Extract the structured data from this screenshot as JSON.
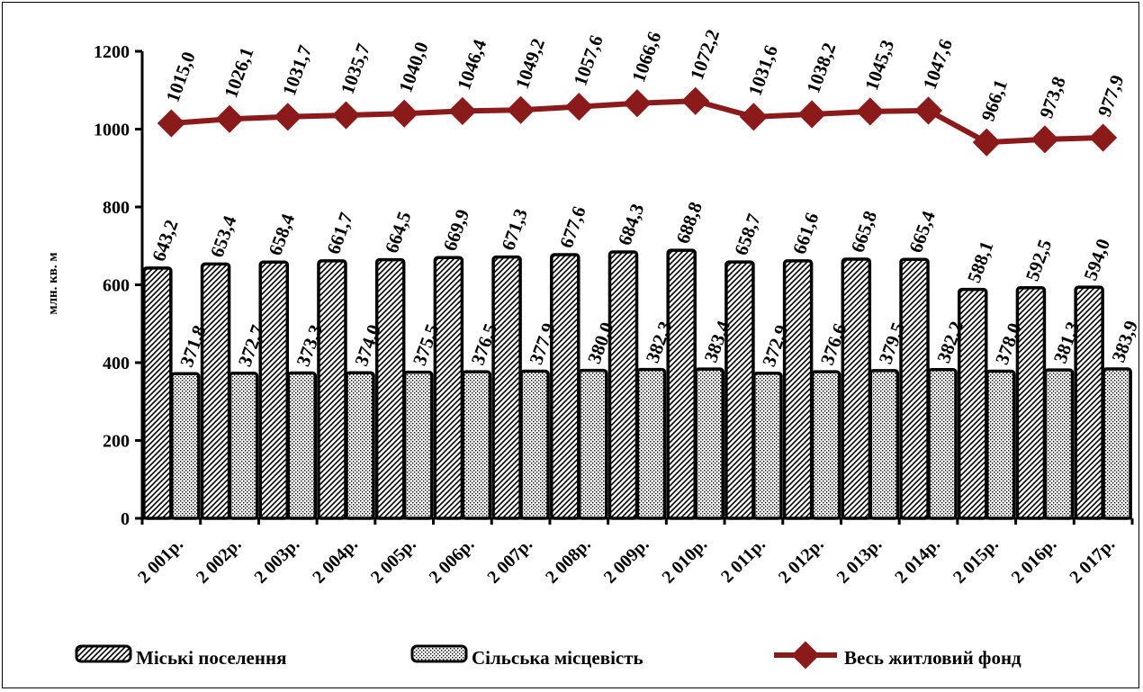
{
  "chart_data": {
    "type": "bar",
    "title": "",
    "xlabel": "",
    "ylabel": "млн. кв. м",
    "ylim": [
      0,
      1200
    ],
    "yticks": [
      0,
      200,
      400,
      600,
      800,
      1000,
      1200
    ],
    "grid": false,
    "legend_position": "bottom",
    "categories": [
      "2 001р.",
      "2 002р.",
      "2 003р.",
      "2 004р.",
      "2 005р.",
      "2 006р.",
      "2 007р.",
      "2 008р.",
      "2 009р.",
      "2 010р.",
      "2 011р.",
      "2 012р.",
      "2 013р.",
      "2 014р.",
      "2 015р.",
      "2 016р.",
      "2 017р."
    ],
    "series": [
      {
        "name": "Міські поселення",
        "type": "bar",
        "pattern": "diagonal-hatch",
        "values": [
          643.2,
          653.4,
          658.4,
          661.7,
          664.5,
          669.9,
          671.3,
          677.6,
          684.3,
          688.8,
          658.7,
          661.6,
          665.8,
          665.4,
          588.1,
          592.5,
          594.0
        ],
        "labels": [
          "643,2",
          "653,4",
          "658,4",
          "661,7",
          "664,5",
          "669,9",
          "671,3",
          "677,6",
          "684,3",
          "688,8",
          "658,7",
          "661,6",
          "665,8",
          "665,4",
          "588,1",
          "592,5",
          "594,0"
        ]
      },
      {
        "name": "Сільська місцевість",
        "type": "bar",
        "pattern": "dots",
        "values": [
          371.8,
          372.7,
          373.3,
          374.0,
          375.5,
          376.5,
          377.9,
          380.0,
          382.3,
          383.4,
          372.9,
          376.6,
          379.5,
          382.2,
          378.0,
          381.3,
          383.9
        ],
        "labels": [
          "371,8",
          "372,7",
          "373,3",
          "374,0",
          "375,5",
          "376,5",
          "377,9",
          "380,0",
          "382,3",
          "383,4",
          "372,9",
          "376,6",
          "379,5",
          "382,2",
          "378,0",
          "381,3",
          "383,9"
        ]
      },
      {
        "name": "Весь житловий фонд",
        "type": "line",
        "color": "#8b1a1a",
        "values": [
          1015.0,
          1026.1,
          1031.7,
          1035.7,
          1040.0,
          1046.4,
          1049.2,
          1057.6,
          1066.6,
          1072.2,
          1031.6,
          1038.2,
          1045.3,
          1047.6,
          966.1,
          973.8,
          977.9
        ],
        "labels": [
          "1015,0",
          "1026,1",
          "1031,7",
          "1035,7",
          "1040,0",
          "1046,4",
          "1049,2",
          "1057,6",
          "1066,6",
          "1072,2",
          "1031,6",
          "1038,2",
          "1045,3",
          "1047,6",
          "966,1",
          "973,8",
          "977,9"
        ]
      }
    ]
  }
}
